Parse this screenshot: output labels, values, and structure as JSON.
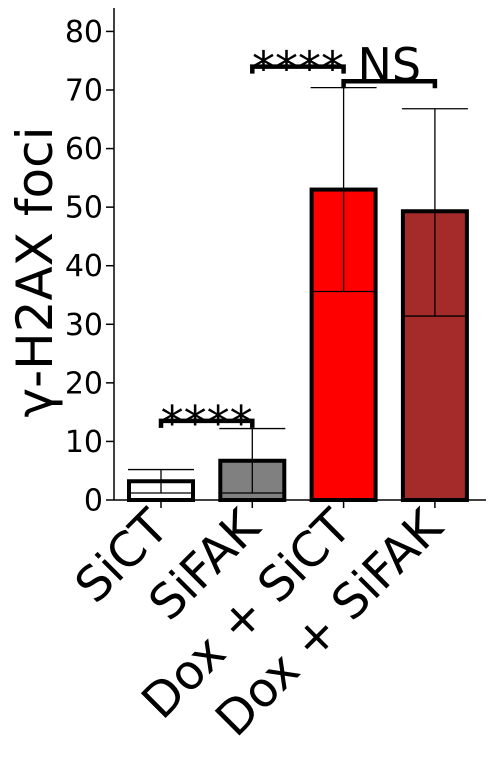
{
  "chart_data": {
    "type": "bar",
    "ylabel": "γ-H2AX foci",
    "xlabel": "",
    "ylim": [
      0,
      84
    ],
    "yticks": [
      0,
      10,
      20,
      30,
      40,
      50,
      60,
      70,
      80
    ],
    "categories": [
      "SiCT",
      "SiFAK",
      "Dox + SiCT",
      "Dox + SiFAK"
    ],
    "values": [
      3.2,
      6.7,
      53,
      49.3
    ],
    "error_low": [
      1.2,
      1.2,
      35.6,
      31.4
    ],
    "error_high": [
      5.2,
      12.2,
      70.4,
      66.8
    ],
    "bar_colors": [
      "#ffffff",
      "#808080",
      "#ff0000",
      "#a52a2a"
    ],
    "grid": false,
    "significance": [
      {
        "from": 0,
        "to": 1,
        "y": 13.5,
        "label": "****"
      },
      {
        "from": 1,
        "to": 2,
        "y": 74,
        "label": "****"
      },
      {
        "from": 2,
        "to": 3,
        "y": 71.5,
        "label": "NS"
      }
    ]
  }
}
